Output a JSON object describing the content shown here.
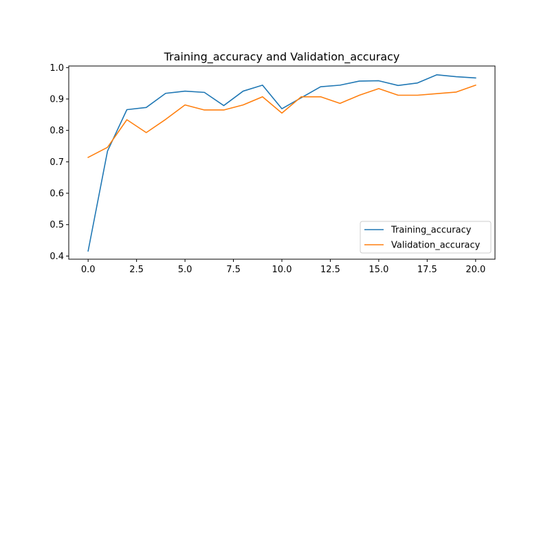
{
  "chart_data": {
    "type": "line",
    "title": "Training_accuracy and Validation_accuracy",
    "xlabel": "",
    "ylabel": "",
    "xlim": [
      -1,
      21
    ],
    "ylim": [
      0.39,
      1.005
    ],
    "x_ticks": [
      0.0,
      2.5,
      5.0,
      7.5,
      10.0,
      12.5,
      15.0,
      17.5,
      20.0
    ],
    "x_tick_labels": [
      "0.0",
      "2.5",
      "5.0",
      "7.5",
      "10.0",
      "12.5",
      "15.0",
      "17.5",
      "20.0"
    ],
    "y_ticks": [
      0.4,
      0.5,
      0.6,
      0.7,
      0.8,
      0.9,
      1.0
    ],
    "y_tick_labels": [
      "0.4",
      "0.5",
      "0.6",
      "0.7",
      "0.8",
      "0.9",
      "1.0"
    ],
    "grid": false,
    "legend_position": "lower-right",
    "x": [
      0,
      1,
      2,
      3,
      4,
      5,
      6,
      7,
      8,
      9,
      10,
      11,
      12,
      13,
      14,
      15,
      16,
      17,
      18,
      19,
      20
    ],
    "series": [
      {
        "name": "Training_accuracy",
        "color": "#1f77b4",
        "values": [
          0.416,
          0.734,
          0.866,
          0.873,
          0.918,
          0.925,
          0.921,
          0.879,
          0.925,
          0.944,
          0.869,
          0.904,
          0.939,
          0.944,
          0.957,
          0.958,
          0.943,
          0.951,
          0.977,
          0.971,
          0.967
        ]
      },
      {
        "name": "Validation_accuracy",
        "color": "#ff7f0e",
        "values": [
          0.714,
          0.746,
          0.834,
          0.793,
          0.835,
          0.881,
          0.865,
          0.865,
          0.881,
          0.907,
          0.855,
          0.907,
          0.907,
          0.886,
          0.912,
          0.933,
          0.912,
          0.912,
          0.917,
          0.922,
          0.944
        ]
      }
    ]
  }
}
